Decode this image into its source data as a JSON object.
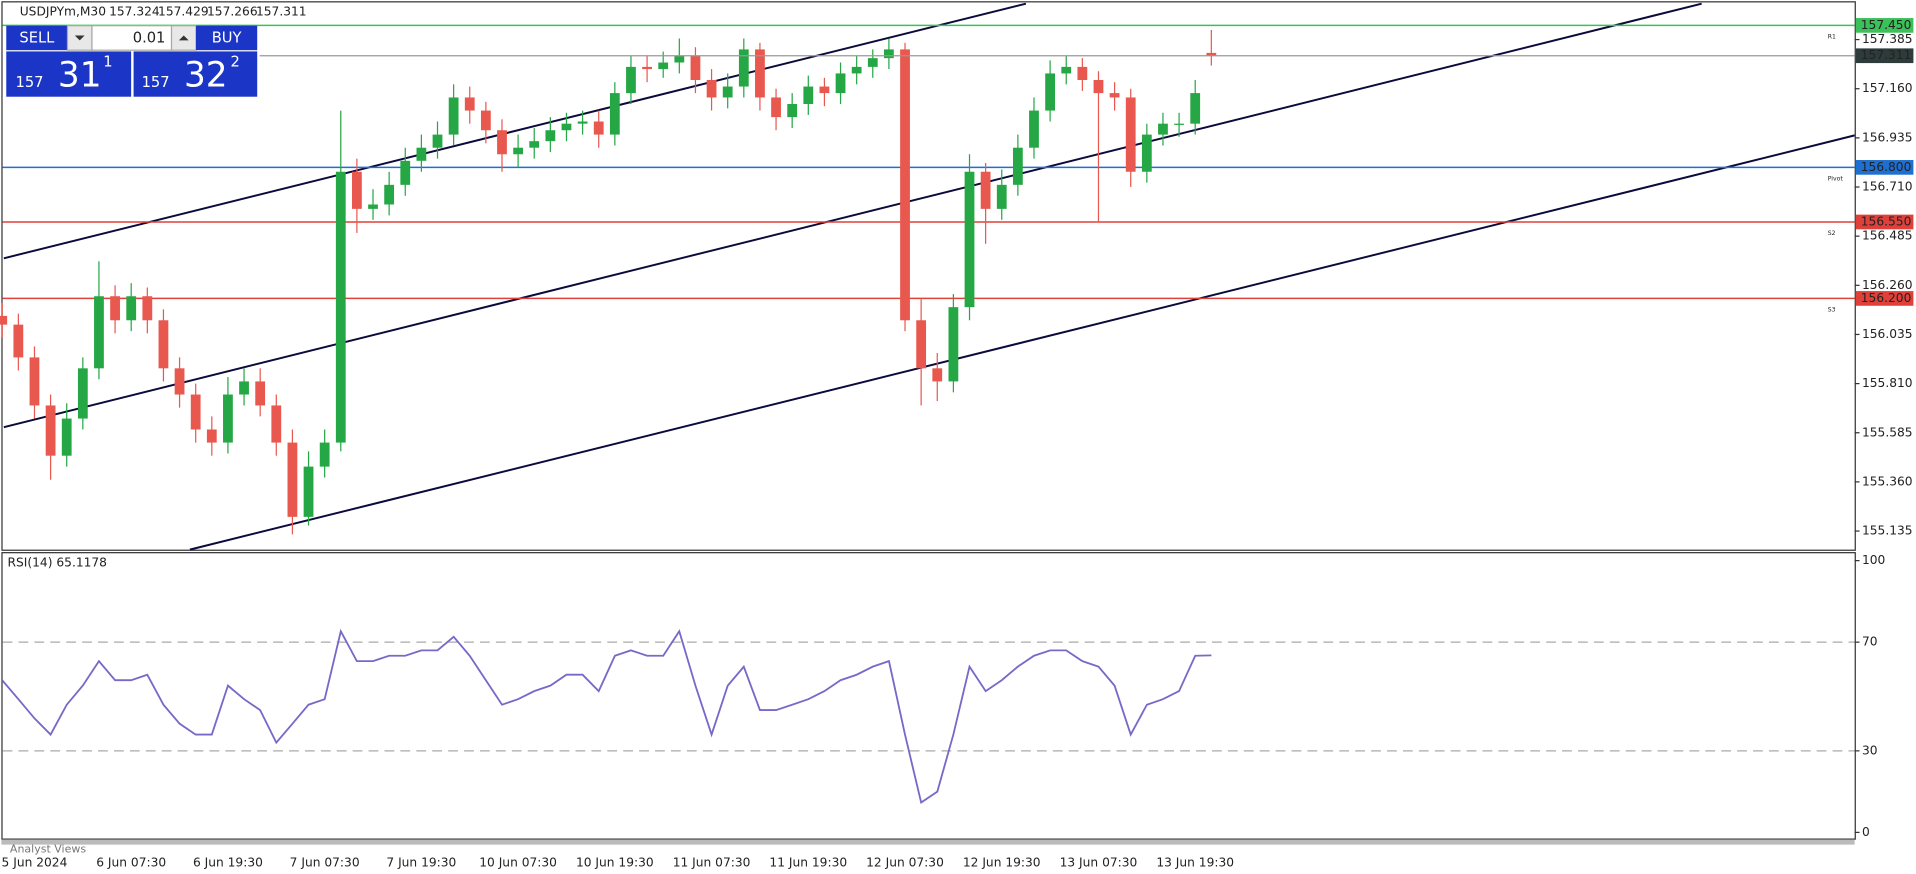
{
  "chart_data": [
    {
      "type": "candlestick",
      "title": "USDJPYm,M30",
      "categories": [
        null,
        null,
        "5 Jun 2024",
        null,
        null,
        null,
        null,
        null,
        "6 Jun 07:30",
        null,
        null,
        null,
        null,
        null,
        "6 Jun 19:30",
        null,
        null,
        null,
        null,
        null,
        "7 Jun 07:30",
        null,
        null,
        null,
        null,
        null,
        "7 Jun 19:30",
        null,
        null,
        null,
        null,
        null,
        "10 Jun 07:30",
        null,
        null,
        null,
        null,
        null,
        "10 Jun 19:30",
        null,
        null,
        null,
        null,
        null,
        "11 Jun 07:30",
        null,
        null,
        null,
        null,
        null,
        "11 Jun 19:30",
        null,
        null,
        null,
        null,
        null,
        "12 Jun 07:30",
        null,
        null,
        null,
        null,
        null,
        "12 Jun 19:30",
        null,
        null,
        null,
        null,
        null,
        "13 Jun 07:30",
        null,
        null,
        null,
        null,
        null,
        "13 Jun 19:30",
        null
      ],
      "open": [
        156.12,
        156.08,
        155.93,
        155.71,
        155.48,
        155.65,
        155.88,
        156.21,
        156.1,
        156.21,
        156.1,
        155.88,
        155.76,
        155.6,
        155.54,
        155.76,
        155.82,
        155.71,
        155.54,
        155.2,
        155.43,
        155.54,
        156.78,
        156.61,
        156.63,
        156.72,
        156.83,
        156.89,
        156.95,
        157.12,
        157.06,
        156.97,
        156.86,
        156.89,
        156.92,
        156.97,
        157.0,
        157.01,
        156.95,
        157.14,
        157.26,
        157.25,
        157.28,
        157.31,
        157.2,
        157.12,
        157.17,
        157.34,
        157.12,
        157.03,
        157.09,
        157.17,
        157.14,
        157.23,
        157.26,
        157.3,
        157.34,
        156.1,
        155.88,
        155.82,
        156.16,
        156.78,
        156.61,
        156.72,
        156.89,
        157.06,
        157.23,
        157.26,
        157.2,
        157.14,
        157.12,
        156.78,
        156.95,
        157.0,
        157.0,
        157.324
      ],
      "high": [
        156.18,
        156.13,
        155.98,
        155.76,
        155.72,
        155.93,
        156.37,
        156.26,
        156.27,
        156.25,
        156.15,
        155.93,
        155.81,
        155.66,
        155.84,
        155.88,
        155.88,
        155.76,
        155.6,
        155.5,
        155.6,
        157.06,
        156.84,
        156.7,
        156.78,
        156.89,
        156.95,
        157.01,
        157.18,
        157.17,
        157.1,
        157.02,
        156.95,
        156.98,
        157.03,
        157.05,
        157.06,
        157.06,
        157.19,
        157.31,
        157.31,
        157.33,
        157.39,
        157.35,
        157.25,
        157.23,
        157.39,
        157.37,
        157.16,
        157.14,
        157.22,
        157.21,
        157.28,
        157.31,
        157.34,
        157.39,
        157.37,
        156.2,
        155.95,
        156.22,
        156.86,
        156.82,
        156.79,
        156.95,
        157.12,
        157.29,
        157.31,
        157.3,
        157.24,
        157.19,
        157.16,
        157.0,
        157.05,
        157.05,
        157.2,
        157.429
      ],
      "low": [
        156.02,
        155.87,
        155.65,
        155.37,
        155.43,
        155.6,
        155.83,
        156.04,
        156.05,
        156.04,
        155.82,
        155.7,
        155.54,
        155.48,
        155.49,
        155.71,
        155.66,
        155.48,
        155.12,
        155.16,
        155.38,
        155.5,
        156.5,
        156.56,
        156.58,
        156.67,
        156.78,
        156.84,
        156.9,
        157.0,
        156.91,
        156.78,
        156.8,
        156.84,
        156.87,
        156.92,
        156.95,
        156.89,
        156.9,
        157.09,
        157.19,
        157.21,
        157.23,
        157.14,
        157.06,
        157.07,
        157.12,
        157.06,
        156.97,
        156.98,
        157.04,
        157.08,
        157.09,
        157.18,
        157.21,
        157.25,
        156.05,
        155.71,
        155.73,
        155.77,
        156.1,
        156.45,
        156.56,
        156.67,
        156.84,
        157.01,
        157.18,
        157.15,
        156.55,
        157.06,
        156.71,
        156.73,
        156.9,
        156.94,
        156.95,
        157.266
      ],
      "close": [
        156.08,
        155.93,
        155.71,
        155.48,
        155.65,
        155.88,
        156.21,
        156.1,
        156.21,
        156.1,
        155.88,
        155.76,
        155.6,
        155.54,
        155.76,
        155.82,
        155.71,
        155.54,
        155.2,
        155.43,
        155.54,
        156.78,
        156.61,
        156.63,
        156.72,
        156.83,
        156.89,
        156.95,
        157.12,
        157.06,
        156.97,
        156.86,
        156.89,
        156.92,
        156.97,
        157.0,
        157.01,
        156.95,
        157.14,
        157.26,
        157.25,
        157.28,
        157.31,
        157.2,
        157.12,
        157.17,
        157.34,
        157.12,
        157.03,
        157.09,
        157.17,
        157.14,
        157.23,
        157.26,
        157.3,
        157.34,
        156.1,
        155.88,
        155.82,
        156.16,
        156.78,
        156.61,
        156.72,
        156.89,
        157.06,
        157.23,
        157.26,
        157.2,
        157.14,
        157.12,
        156.78,
        156.95,
        157.0,
        157.0,
        157.14,
        157.311
      ],
      "up_color": "#26a745",
      "down_color": "#e8584f",
      "ylim": [
        155.05,
        157.555
      ],
      "yticks": [
        157.385,
        {
          "value": 157.16,
          "label": "157.160"
        },
        156.935,
        {
          "value": 156.71,
          "label": "156.710"
        },
        156.485,
        {
          "value": 156.26,
          "label": "156.260"
        },
        156.035,
        {
          "value": 155.81,
          "label": "155.810"
        },
        155.585,
        {
          "value": 155.36,
          "label": "155.360"
        },
        155.135
      ],
      "levels": [
        {
          "value": 157.45,
          "label": "157.450",
          "name": "R1",
          "color": "#3cc05a"
        },
        {
          "value": 156.8,
          "label": "156.800",
          "name": "Pivot",
          "color": "#1f6fd1"
        },
        {
          "value": 156.55,
          "label": "156.550",
          "name": "S2",
          "color": "#e0403a"
        },
        {
          "value": 156.2,
          "label": "156.200",
          "name": "S3",
          "color": "#e0403a"
        }
      ]
    },
    {
      "type": "line",
      "title": "RSI(14) 65.1178",
      "color": "#7a68c8",
      "values": [
        56,
        49,
        42,
        36,
        47,
        54,
        63,
        56,
        56,
        58,
        47,
        40,
        36,
        36,
        54,
        49,
        45,
        33,
        40,
        47,
        49,
        74,
        63,
        63,
        65,
        65,
        67,
        67,
        72,
        65,
        56,
        47,
        49,
        52,
        54,
        58,
        58,
        52,
        65,
        67,
        65,
        65,
        74,
        54,
        36,
        54,
        61,
        45,
        45,
        47,
        49,
        52,
        56,
        58,
        61,
        63,
        36,
        11,
        15,
        36,
        61,
        52,
        56,
        61,
        65,
        67,
        67,
        63,
        61,
        54,
        36,
        47,
        49,
        52,
        65,
        65.1178
      ],
      "ylim": [
        -2.7,
        102.7
      ],
      "yticks": [
        0,
        30,
        70,
        100
      ],
      "levels": [
        30,
        70
      ]
    }
  ],
  "trade_panel": {
    "sell": "SELL",
    "buy": "BUY",
    "volume": "0.01",
    "bid": {
      "big": "157",
      "main": "31",
      "sup": "1"
    },
    "ask": {
      "big": "157",
      "main": "32",
      "sup": "2"
    }
  },
  "footer_tab": "Analyst Views"
}
